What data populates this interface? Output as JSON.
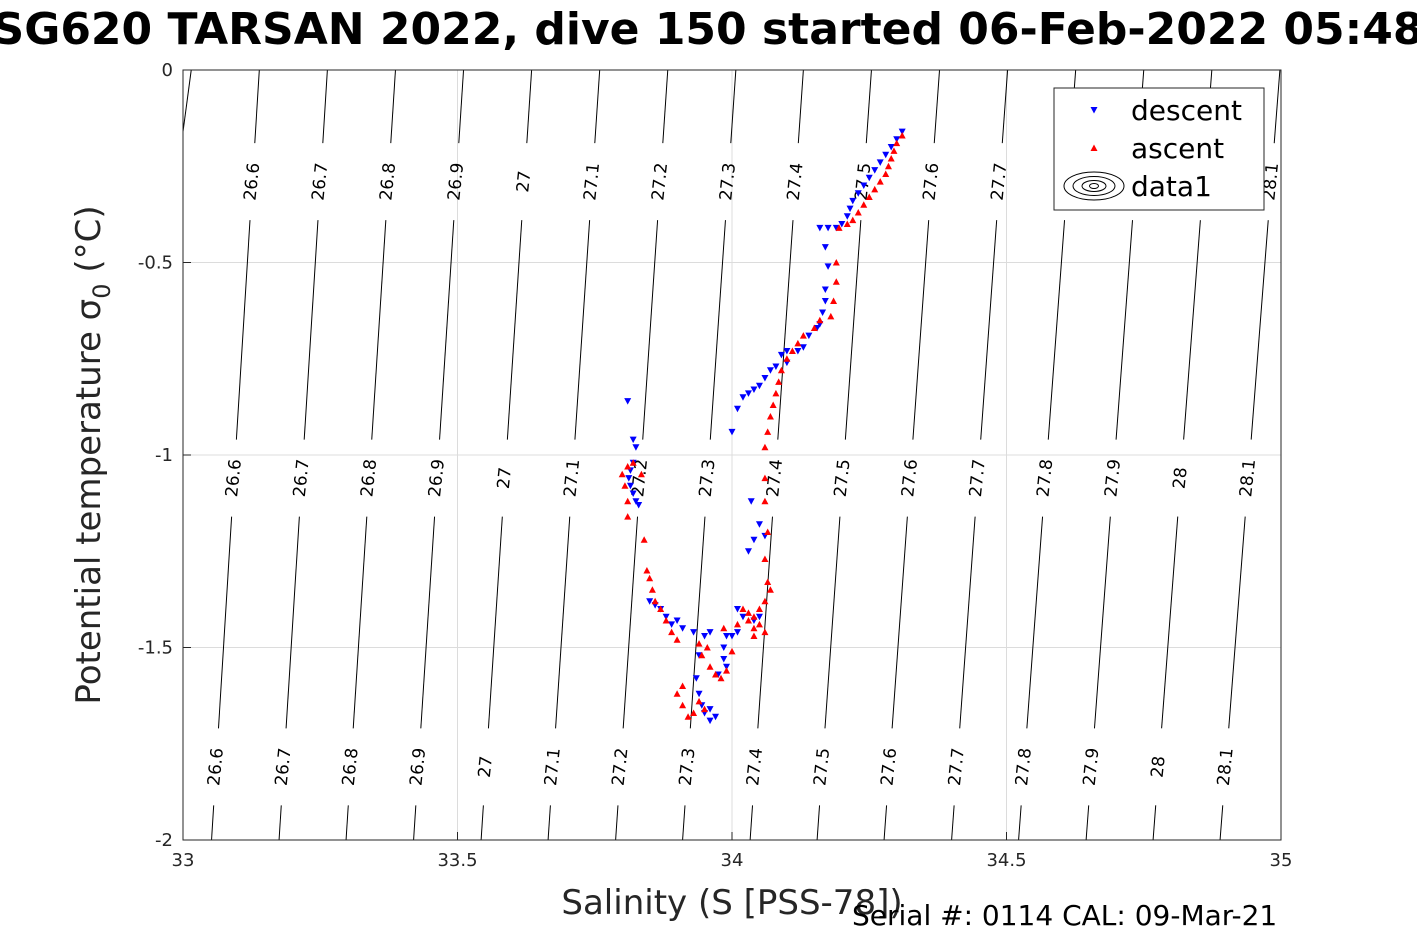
{
  "figure": {
    "title": "SG620 TARSAN 2022, dive 150 started 06-Feb-2022 05:48",
    "footer": "Serial #: 0114  CAL: 09-Mar-21"
  },
  "chart_data": {
    "type": "scatter",
    "xlabel": "Salinity (S [PSS-78])",
    "ylabel_main": "Potential temperature σ",
    "ylabel_sub": "0",
    "ylabel_unit": " (°C)",
    "xlim": [
      33,
      35
    ],
    "ylim": [
      -2,
      0
    ],
    "x_ticks": [
      33,
      33.5,
      34,
      34.5,
      35
    ],
    "x_tick_labels": [
      "33",
      "33.5",
      "34",
      "34.5",
      "35"
    ],
    "y_ticks": [
      0,
      -0.5,
      -1,
      -1.5,
      -2
    ],
    "y_tick_labels": [
      "0",
      "-0.5",
      "-1",
      "-1.5",
      "-2"
    ],
    "grid": true,
    "legend_position": "top-right",
    "legend": [
      {
        "label": "descent",
        "marker": "triangle-down",
        "color": "#0000ff"
      },
      {
        "label": "ascent",
        "marker": "triangle-up",
        "color": "#ff0000"
      },
      {
        "label": "data1",
        "marker": "contour",
        "color": "#000000"
      }
    ],
    "isopycnals": [
      {
        "label": "26.6",
        "x_top": 33.139,
        "x_bottom": 33.052
      },
      {
        "label": "26.7",
        "x_top": 33.263,
        "x_bottom": 33.175
      },
      {
        "label": "26.8",
        "x_top": 33.387,
        "x_bottom": 33.297
      },
      {
        "label": "26.9",
        "x_top": 33.511,
        "x_bottom": 33.42
      },
      {
        "label": "27",
        "x_top": 33.635,
        "x_bottom": 33.543
      },
      {
        "label": "27.1",
        "x_top": 33.759,
        "x_bottom": 33.665
      },
      {
        "label": "27.2",
        "x_top": 33.883,
        "x_bottom": 33.788
      },
      {
        "label": "27.3",
        "x_top": 34.007,
        "x_bottom": 33.91
      },
      {
        "label": "27.4",
        "x_top": 34.13,
        "x_bottom": 34.033
      },
      {
        "label": "27.5",
        "x_top": 34.254,
        "x_bottom": 34.155
      },
      {
        "label": "27.6",
        "x_top": 34.378,
        "x_bottom": 34.277
      },
      {
        "label": "27.7",
        "x_top": 34.502,
        "x_bottom": 34.4
      },
      {
        "label": "27.8",
        "x_top": 34.626,
        "x_bottom": 34.522
      },
      {
        "label": "27.9",
        "x_top": 34.75,
        "x_bottom": 34.645
      },
      {
        "label": "28",
        "x_top": 34.874,
        "x_bottom": 34.767
      },
      {
        "label": "28.1",
        "x_top": 34.998,
        "x_bottom": 34.889
      }
    ],
    "isopycnal_partial": {
      "x_top": 33.015,
      "x_end": 33.0,
      "y_end": -0.16
    },
    "isopycnal_label_rows": [
      -0.29,
      -1.06,
      -1.81
    ],
    "series": [
      {
        "name": "descent",
        "color": "#0000ff",
        "marker": "triangle-down",
        "points": [
          [
            34.31,
            -0.16
          ],
          [
            34.3,
            -0.18
          ],
          [
            34.29,
            -0.2
          ],
          [
            34.28,
            -0.22
          ],
          [
            34.27,
            -0.24
          ],
          [
            34.26,
            -0.26
          ],
          [
            34.25,
            -0.28
          ],
          [
            34.24,
            -0.3
          ],
          [
            34.23,
            -0.32
          ],
          [
            34.22,
            -0.34
          ],
          [
            34.215,
            -0.36
          ],
          [
            34.21,
            -0.38
          ],
          [
            34.2,
            -0.4
          ],
          [
            34.19,
            -0.41
          ],
          [
            34.175,
            -0.41
          ],
          [
            34.16,
            -0.41
          ],
          [
            34.17,
            -0.46
          ],
          [
            34.175,
            -0.51
          ],
          [
            34.17,
            -0.57
          ],
          [
            34.17,
            -0.6
          ],
          [
            34.165,
            -0.63
          ],
          [
            34.16,
            -0.66
          ],
          [
            34.155,
            -0.67
          ],
          [
            34.14,
            -0.69
          ],
          [
            34.13,
            -0.72
          ],
          [
            34.12,
            -0.73
          ],
          [
            34.1,
            -0.73
          ],
          [
            34.09,
            -0.74
          ],
          [
            34.1,
            -0.76
          ],
          [
            34.08,
            -0.77
          ],
          [
            34.07,
            -0.78
          ],
          [
            34.06,
            -0.8
          ],
          [
            34.05,
            -0.82
          ],
          [
            34.04,
            -0.83
          ],
          [
            34.03,
            -0.84
          ],
          [
            34.02,
            -0.85
          ],
          [
            34.01,
            -0.88
          ],
          [
            34.0,
            -0.94
          ],
          [
            34.035,
            -1.12
          ],
          [
            34.05,
            -1.18
          ],
          [
            34.06,
            -1.21
          ],
          [
            34.04,
            -1.22
          ],
          [
            34.03,
            -1.25
          ],
          [
            33.81,
            -0.86
          ],
          [
            33.82,
            -0.96
          ],
          [
            33.825,
            -0.98
          ],
          [
            33.82,
            -1.02
          ],
          [
            33.815,
            -1.04
          ],
          [
            33.812,
            -1.06
          ],
          [
            33.815,
            -1.08
          ],
          [
            33.82,
            -1.1
          ],
          [
            33.825,
            -1.12
          ],
          [
            33.83,
            -1.13
          ],
          [
            33.85,
            -1.38
          ],
          [
            33.86,
            -1.39
          ],
          [
            33.87,
            -1.4
          ],
          [
            33.88,
            -1.42
          ],
          [
            33.89,
            -1.44
          ],
          [
            33.9,
            -1.43
          ],
          [
            33.91,
            -1.45
          ],
          [
            33.93,
            -1.46
          ],
          [
            33.95,
            -1.47
          ],
          [
            33.96,
            -1.46
          ],
          [
            33.94,
            -1.52
          ],
          [
            33.935,
            -1.58
          ],
          [
            33.94,
            -1.62
          ],
          [
            33.945,
            -1.65
          ],
          [
            33.95,
            -1.67
          ],
          [
            33.96,
            -1.69
          ],
          [
            33.97,
            -1.68
          ],
          [
            33.96,
            -1.66
          ],
          [
            33.985,
            -1.5
          ],
          [
            34.0,
            -1.47
          ],
          [
            34.01,
            -1.46
          ],
          [
            34.02,
            -1.42
          ],
          [
            34.01,
            -1.4
          ],
          [
            33.99,
            -1.47
          ],
          [
            33.985,
            -1.53
          ],
          [
            33.99,
            -1.55
          ],
          [
            33.975,
            -1.57
          ],
          [
            34.04,
            -1.43
          ],
          [
            34.05,
            -1.42
          ]
        ]
      },
      {
        "name": "ascent",
        "color": "#ff0000",
        "marker": "triangle-up",
        "points": [
          [
            34.31,
            -0.17
          ],
          [
            34.3,
            -0.19
          ],
          [
            34.295,
            -0.21
          ],
          [
            34.29,
            -0.23
          ],
          [
            34.285,
            -0.25
          ],
          [
            34.28,
            -0.27
          ],
          [
            34.27,
            -0.29
          ],
          [
            34.26,
            -0.31
          ],
          [
            34.25,
            -0.33
          ],
          [
            34.24,
            -0.35
          ],
          [
            34.23,
            -0.37
          ],
          [
            34.22,
            -0.39
          ],
          [
            34.21,
            -0.4
          ],
          [
            34.195,
            -0.41
          ],
          [
            34.19,
            -0.5
          ],
          [
            34.19,
            -0.55
          ],
          [
            34.185,
            -0.6
          ],
          [
            34.18,
            -0.64
          ],
          [
            34.16,
            -0.65
          ],
          [
            34.15,
            -0.67
          ],
          [
            34.13,
            -0.69
          ],
          [
            34.12,
            -0.71
          ],
          [
            34.11,
            -0.73
          ],
          [
            34.1,
            -0.75
          ],
          [
            34.09,
            -0.78
          ],
          [
            34.085,
            -0.81
          ],
          [
            34.08,
            -0.84
          ],
          [
            34.075,
            -0.87
          ],
          [
            34.07,
            -0.9
          ],
          [
            34.065,
            -0.94
          ],
          [
            34.06,
            -0.98
          ],
          [
            34.06,
            -1.06
          ],
          [
            34.06,
            -1.12
          ],
          [
            34.065,
            -1.2
          ],
          [
            34.06,
            -1.27
          ],
          [
            34.065,
            -1.33
          ],
          [
            34.07,
            -1.35
          ],
          [
            34.06,
            -1.38
          ],
          [
            34.05,
            -1.4
          ],
          [
            34.04,
            -1.42
          ],
          [
            34.03,
            -1.43
          ],
          [
            34.04,
            -1.45
          ],
          [
            34.05,
            -1.44
          ],
          [
            34.06,
            -1.46
          ],
          [
            34.02,
            -1.4
          ],
          [
            34.01,
            -1.44
          ],
          [
            33.81,
            -1.03
          ],
          [
            33.8,
            -1.05
          ],
          [
            33.805,
            -1.08
          ],
          [
            33.81,
            -1.12
          ],
          [
            33.81,
            -1.16
          ],
          [
            33.82,
            -1.02
          ],
          [
            33.835,
            -1.05
          ],
          [
            33.84,
            -1.22
          ],
          [
            33.845,
            -1.3
          ],
          [
            33.85,
            -1.32
          ],
          [
            33.855,
            -1.35
          ],
          [
            33.86,
            -1.38
          ],
          [
            33.87,
            -1.4
          ],
          [
            33.88,
            -1.43
          ],
          [
            33.89,
            -1.46
          ],
          [
            33.9,
            -1.48
          ],
          [
            33.9,
            -1.62
          ],
          [
            33.91,
            -1.65
          ],
          [
            33.92,
            -1.68
          ],
          [
            33.93,
            -1.67
          ],
          [
            33.94,
            -1.64
          ],
          [
            33.95,
            -1.66
          ],
          [
            33.91,
            -1.6
          ],
          [
            33.94,
            -1.49
          ],
          [
            33.945,
            -1.52
          ],
          [
            33.955,
            -1.5
          ],
          [
            33.96,
            -1.55
          ],
          [
            33.97,
            -1.57
          ],
          [
            33.98,
            -1.58
          ],
          [
            33.99,
            -1.56
          ],
          [
            34.0,
            -1.51
          ],
          [
            33.985,
            -1.45
          ],
          [
            34.03,
            -1.41
          ],
          [
            34.04,
            -1.47
          ]
        ]
      }
    ]
  }
}
